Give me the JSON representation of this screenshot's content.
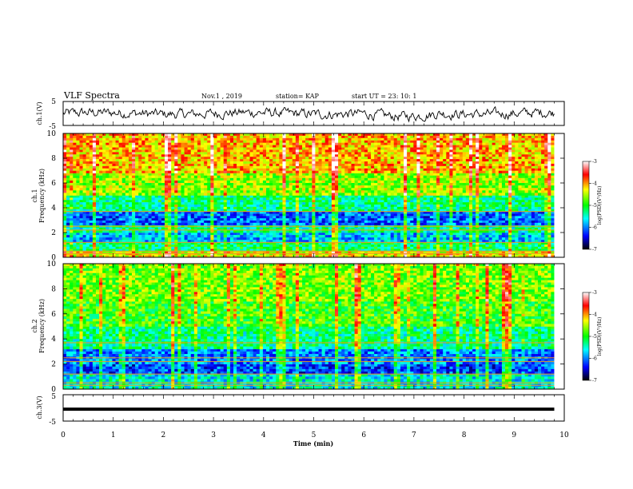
{
  "header": {
    "title": "VLF Spectra",
    "date": "Nov.1 , 2019",
    "station": "station= KAP",
    "start": "start UT = 23: 10: 1"
  },
  "colors": {
    "waveform": "#000000",
    "colormap": [
      "#000000",
      "#0000ff",
      "#00ffff",
      "#00ff00",
      "#ffff00",
      "#ff0000",
      "#ffffff"
    ]
  },
  "chart_data": [
    {
      "type": "line",
      "panel": "ch1-waveform",
      "ylabel": "ch.1(V)",
      "ylim": [
        -5,
        5
      ],
      "yticks": [
        "5",
        "-5"
      ],
      "xlim": [
        0,
        10
      ],
      "x_end": 9.8,
      "series": [
        {
          "values_description_free": true,
          "mean": 0,
          "amplitude": 2.5
        }
      ]
    },
    {
      "type": "heatmap",
      "panel": "ch1-spectrogram",
      "ylabel": "ch.1\nFrequency (kHz)",
      "ylabel_line1": "ch.1",
      "ylabel_line2": "Frequency (kHz)",
      "ylim": [
        0,
        10
      ],
      "yticks": [
        "0",
        "2",
        "4",
        "6",
        "8",
        "10"
      ],
      "xlim": [
        0,
        10
      ],
      "x_end": 9.8,
      "colorbar": {
        "label": "log(PSD)(V²/Hz)",
        "range": [
          -7,
          -3
        ],
        "ticks": [
          "-3",
          "-4",
          "-5",
          "-6",
          "-7"
        ]
      },
      "bands": [
        {
          "f": [
            0,
            0.5
          ],
          "level": -4.3
        },
        {
          "f": [
            0.5,
            1.2
          ],
          "level": -5.2
        },
        {
          "f": [
            1.2,
            2.0
          ],
          "level": -5.8
        },
        {
          "f": [
            2.0,
            2.6
          ],
          "level": -5.4
        },
        {
          "f": [
            2.6,
            3.7
          ],
          "level": -6.1
        },
        {
          "f": [
            3.7,
            5.0
          ],
          "level": -5.3
        },
        {
          "f": [
            5.0,
            6.8
          ],
          "level": -4.6
        },
        {
          "f": [
            6.8,
            10.0
          ],
          "level": -4.1
        }
      ]
    },
    {
      "type": "heatmap",
      "panel": "ch2-spectrogram",
      "ylabel_line1": "ch.2",
      "ylabel_line2": "Frequency (kHz)",
      "ylim": [
        0,
        10
      ],
      "yticks": [
        "0",
        "2",
        "4",
        "6",
        "8",
        "10"
      ],
      "xlim": [
        0,
        10
      ],
      "x_end": 9.8,
      "colorbar": {
        "label": "log(PSD)(V²/Hz)",
        "range": [
          -7,
          -3
        ],
        "ticks": [
          "-3",
          "-4",
          "-5",
          "-6",
          "-7"
        ]
      },
      "bands": [
        {
          "f": [
            0,
            1.2
          ],
          "level": -5.6
        },
        {
          "f": [
            1.2,
            2.0
          ],
          "level": -6.2
        },
        {
          "f": [
            2.0,
            3.2
          ],
          "level": -6.0
        },
        {
          "f": [
            3.2,
            5.0
          ],
          "level": -5.3
        },
        {
          "f": [
            5.0,
            7.0
          ],
          "level": -4.9
        },
        {
          "f": [
            7.0,
            10.0
          ],
          "level": -4.7
        }
      ]
    },
    {
      "type": "line",
      "panel": "ch3-waveform",
      "ylabel": "ch.3(V)",
      "ylim": [
        -5,
        5
      ],
      "yticks": [
        "5",
        "-5"
      ],
      "xlim": [
        0,
        10
      ],
      "x_end": 9.8,
      "constant_value": -0.5,
      "xlabel": "Time (min)",
      "xticks": [
        "0",
        "1",
        "2",
        "3",
        "4",
        "5",
        "6",
        "7",
        "8",
        "9",
        "10"
      ]
    }
  ]
}
